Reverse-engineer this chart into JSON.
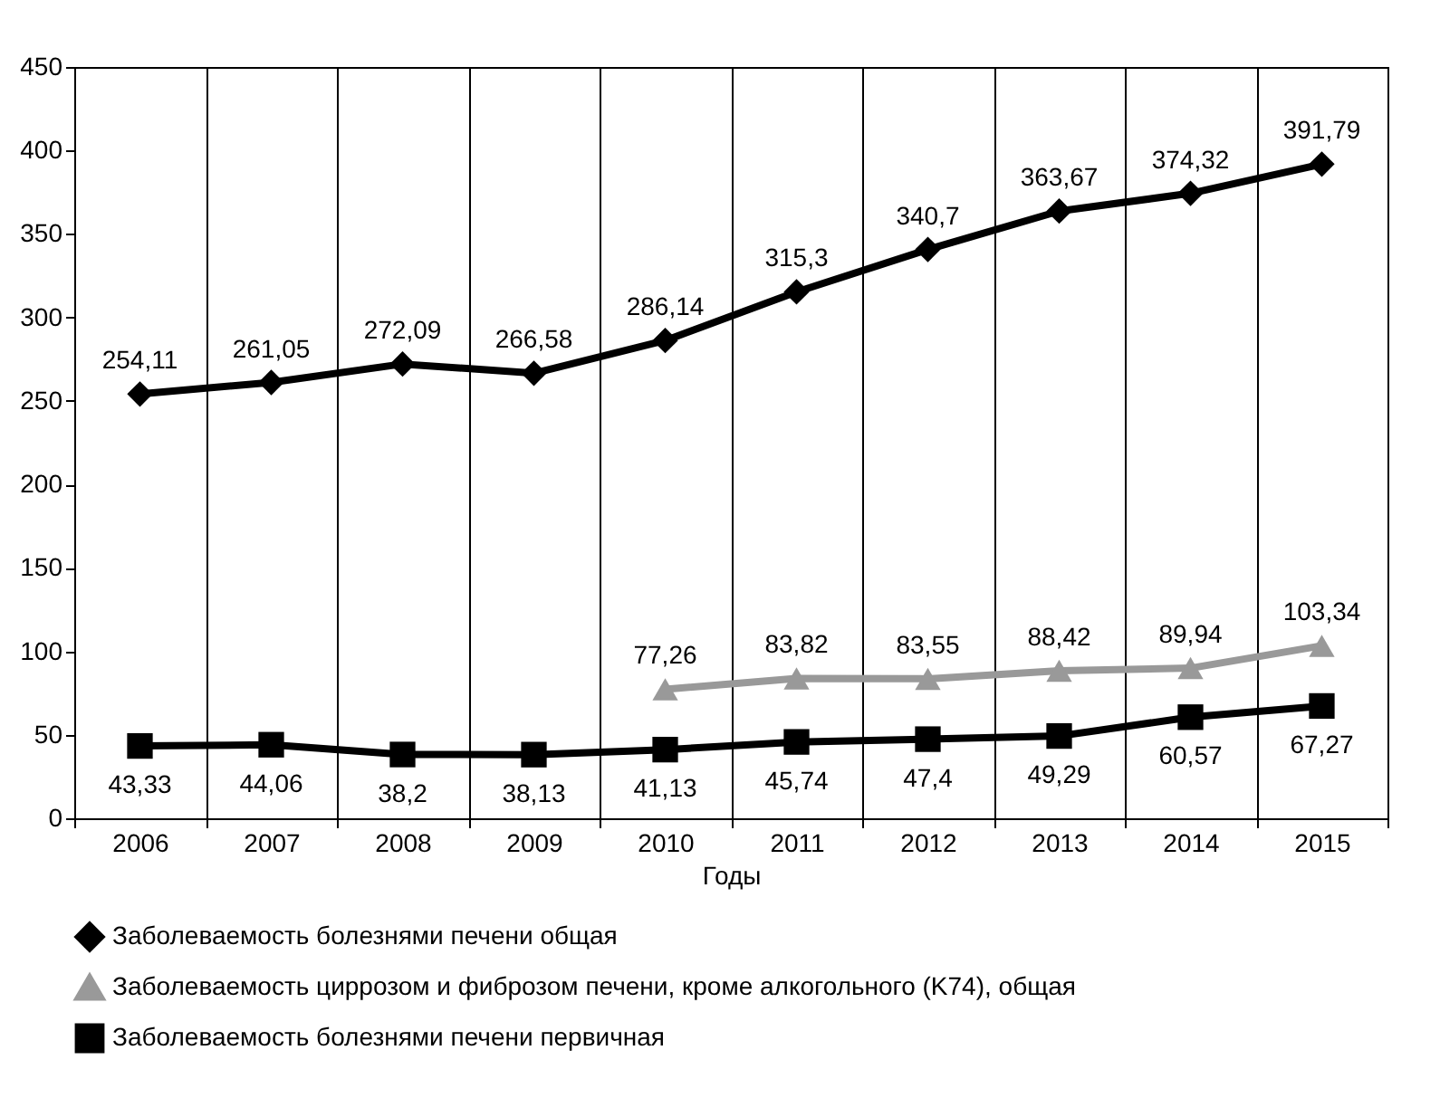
{
  "chart_data": {
    "type": "line",
    "xlabel": "Годы",
    "categories": [
      "2006",
      "2007",
      "2008",
      "2009",
      "2010",
      "2011",
      "2012",
      "2013",
      "2014",
      "2015"
    ],
    "ylim": [
      0,
      450
    ],
    "yticks": [
      0,
      50,
      100,
      150,
      200,
      250,
      300,
      350,
      400,
      450
    ],
    "grid": "x",
    "legend": "bottom",
    "line_style": "solid",
    "series": [
      {
        "name": "Заболеваемость болезнями печени общая",
        "color": "#000000",
        "marker": "diamond",
        "values": [
          254.11,
          261.05,
          272.09,
          266.58,
          286.14,
          315.3,
          340.7,
          363.67,
          374.32,
          391.79
        ],
        "value_labels": [
          "254,11",
          "261,05",
          "272,09",
          "266,58",
          "286,14",
          "315,3",
          "340,7",
          "363,67",
          "374,32",
          "391,79"
        ]
      },
      {
        "name": "Заболеваемость циррозом и фиброзом печени, кроме алкогольного (K74), общая",
        "color": "#999999",
        "marker": "triangle",
        "values": [
          null,
          null,
          null,
          null,
          77.26,
          83.82,
          83.55,
          88.42,
          89.94,
          103.34
        ],
        "value_labels": [
          null,
          null,
          null,
          null,
          "77,26",
          "83,82",
          "83,55",
          "88,42",
          "89,94",
          "103,34"
        ]
      },
      {
        "name": "Заболеваемость болезнями печени первичная",
        "color": "#000000",
        "marker": "square",
        "values": [
          43.33,
          44.06,
          38.2,
          38.13,
          41.13,
          45.74,
          47.4,
          49.29,
          60.57,
          67.27
        ],
        "value_labels": [
          "43,33",
          "44,06",
          "38,2",
          "38,13",
          "41,13",
          "45,74",
          "47,4",
          "49,29",
          "60,57",
          "67,27"
        ]
      }
    ]
  }
}
